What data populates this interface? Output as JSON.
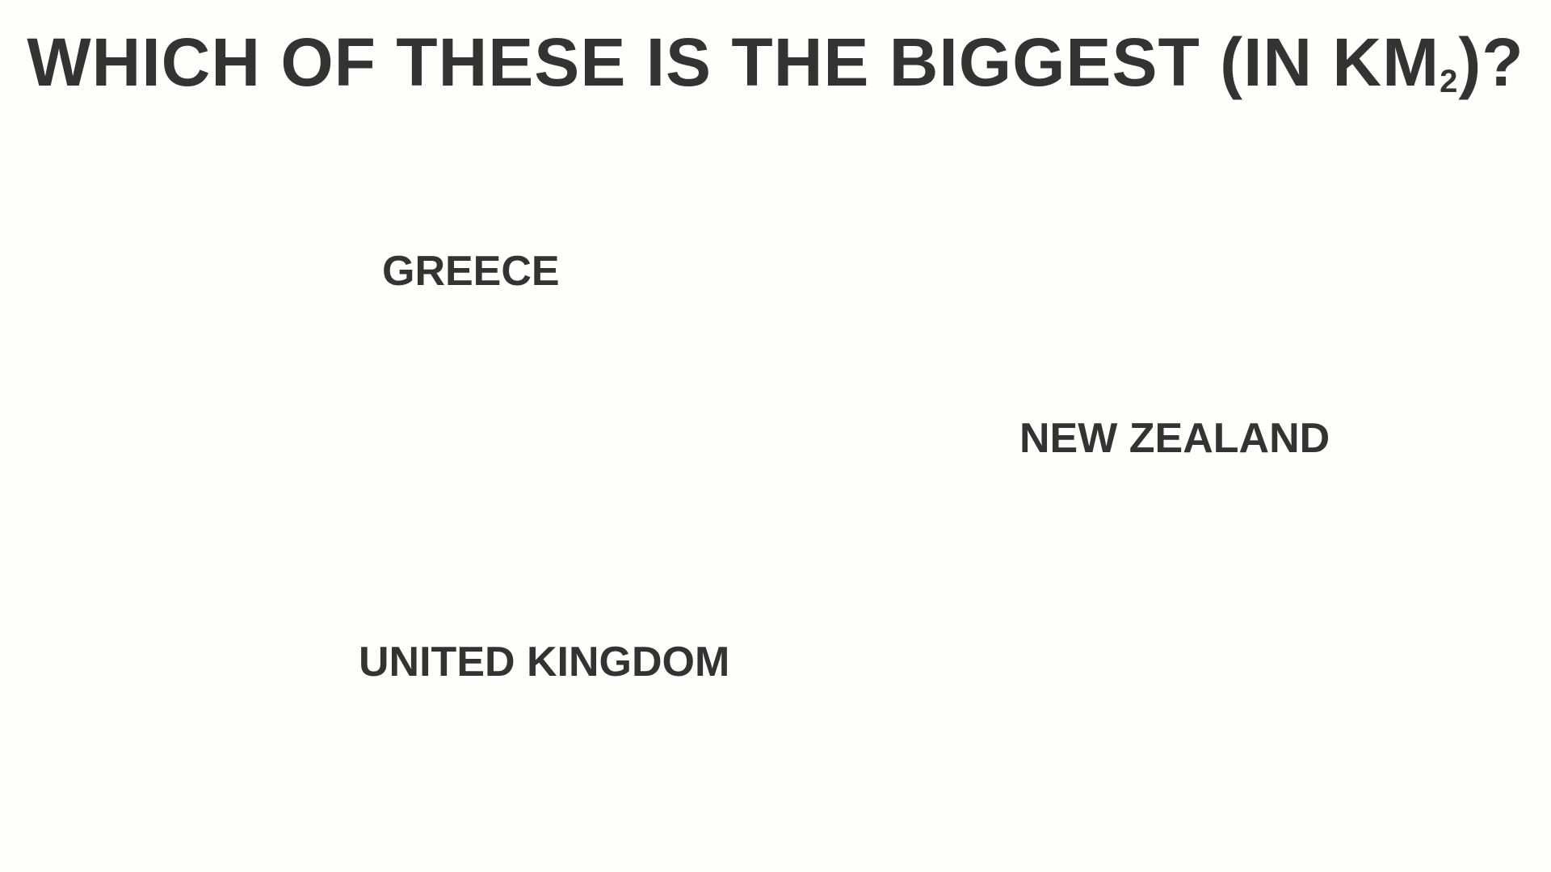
{
  "slide": {
    "title_main": "WHICH OF THESE IS THE BIGGEST (IN KM",
    "title_sub": "2",
    "title_end": ")?"
  },
  "options": [
    {
      "label": "GREECE"
    },
    {
      "label": "NEW ZEALAND"
    },
    {
      "label": "UNITED KINGDOM"
    }
  ],
  "colors": {
    "background": "#fefefc",
    "text": "#333333"
  }
}
